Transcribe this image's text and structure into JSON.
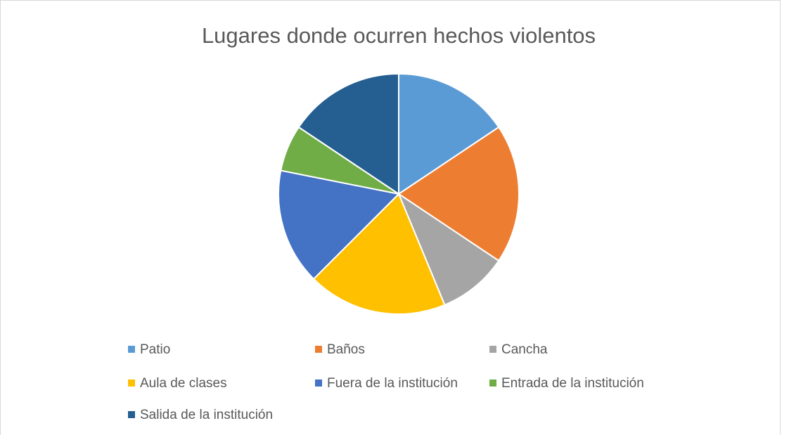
{
  "chart_data": {
    "type": "pie",
    "title": "Lugares donde ocurren hechos violentos",
    "categories": [
      "Patio",
      "Baños",
      "Cancha",
      "Aula de clases",
      "Fuera de la institución",
      "Entrada de la institución",
      "Salida de la institución"
    ],
    "values": [
      5,
      6,
      3,
      6,
      5,
      2,
      5
    ],
    "colors": [
      "#5b9bd5",
      "#ed7d31",
      "#a5a5a5",
      "#ffc000",
      "#4472c4",
      "#70ad47",
      "#255e91"
    ],
    "legend": "bottom"
  }
}
